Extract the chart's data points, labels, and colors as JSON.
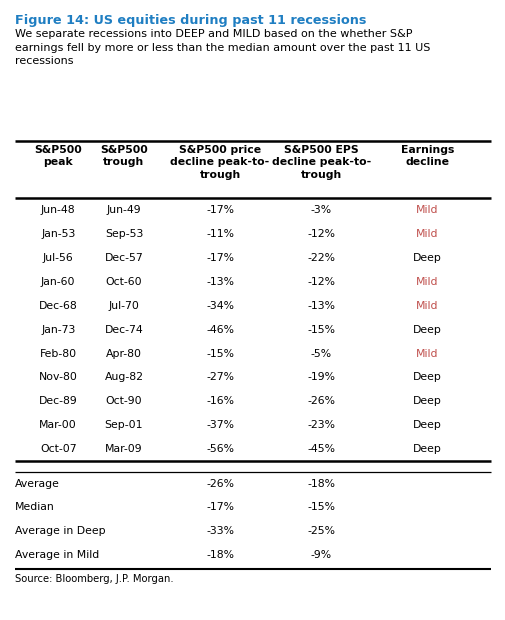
{
  "title": "Figure 14: US equities during past 11 recessions",
  "subtitle": "We separate recessions into DEEP and MILD based on the whether S&P\nearnings fell by more or less than the median amount over the past 11 US\nrecessions",
  "title_color": "#1F7EC2",
  "col_headers": [
    "S&P500\npeak",
    "S&P500\ntrough",
    "S&P500 price\ndecline peak-to-\ntrough",
    "S&P500 EPS\ndecline peak-to-\ntrough",
    "Earnings\ndecline"
  ],
  "data_rows": [
    [
      "Jun-48",
      "Jun-49",
      "-17%",
      "-3%",
      "Mild"
    ],
    [
      "Jan-53",
      "Sep-53",
      "-11%",
      "-12%",
      "Mild"
    ],
    [
      "Jul-56",
      "Dec-57",
      "-17%",
      "-22%",
      "Deep"
    ],
    [
      "Jan-60",
      "Oct-60",
      "-13%",
      "-12%",
      "Mild"
    ],
    [
      "Dec-68",
      "Jul-70",
      "-34%",
      "-13%",
      "Mild"
    ],
    [
      "Jan-73",
      "Dec-74",
      "-46%",
      "-15%",
      "Deep"
    ],
    [
      "Feb-80",
      "Apr-80",
      "-15%",
      "-5%",
      "Mild"
    ],
    [
      "Nov-80",
      "Aug-82",
      "-27%",
      "-19%",
      "Deep"
    ],
    [
      "Dec-89",
      "Oct-90",
      "-16%",
      "-26%",
      "Deep"
    ],
    [
      "Mar-00",
      "Sep-01",
      "-37%",
      "-23%",
      "Deep"
    ],
    [
      "Oct-07",
      "Mar-09",
      "-56%",
      "-45%",
      "Deep"
    ]
  ],
  "summary_rows": [
    [
      "Average",
      "",
      "-26%",
      "-18%",
      ""
    ],
    [
      "Median",
      "",
      "-17%",
      "-15%",
      ""
    ],
    [
      "Average in Deep",
      "",
      "-33%",
      "-25%",
      ""
    ],
    [
      "Average in Mild",
      "",
      "-18%",
      "-9%",
      ""
    ]
  ],
  "mild_color": "#C0504D",
  "deep_color": "#000000",
  "source": "Source: Bloomberg, J.P. Morgan.",
  "bg_color": "#FFFFFF"
}
